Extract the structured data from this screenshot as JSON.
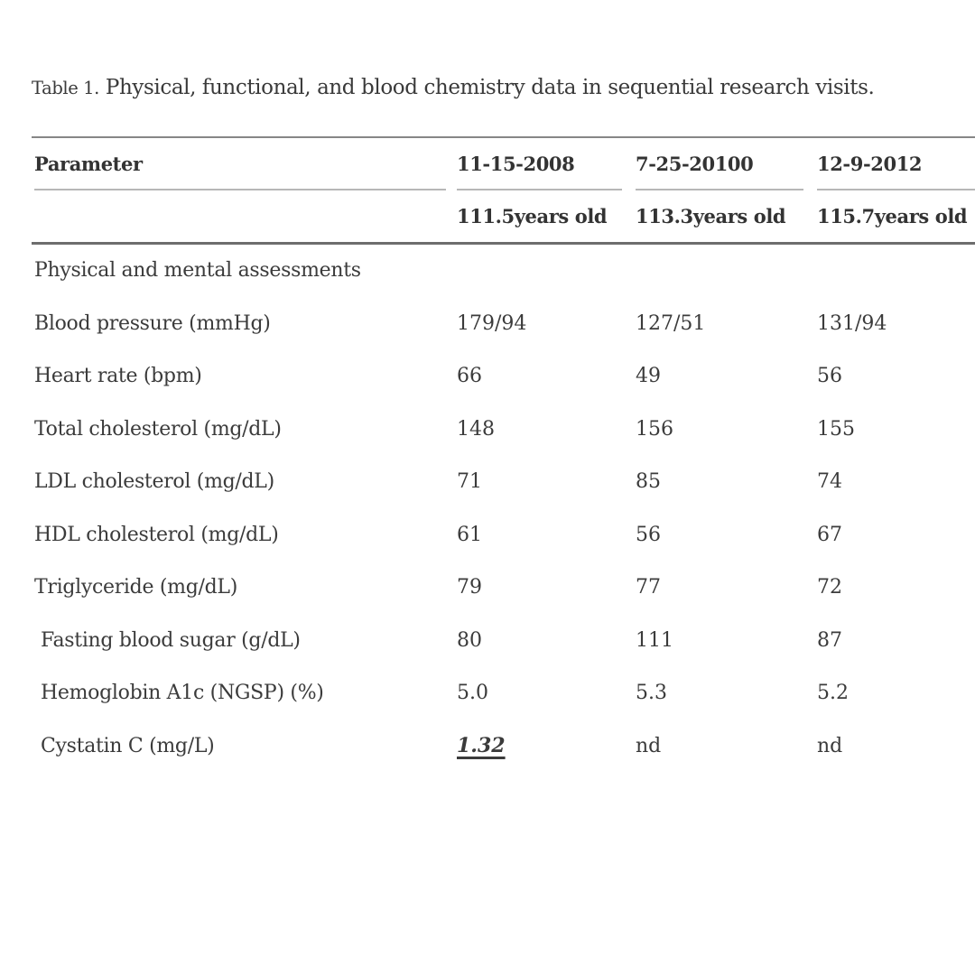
{
  "title": {
    "prefix": "Table 1.",
    "rest": " Physical, functional, and blood chemistry data in sequential research visits."
  },
  "table": {
    "param_header": "Parameter",
    "visits": [
      {
        "date": "11-15-2008",
        "age": "111.5years old"
      },
      {
        "date": "7-25-20100",
        "age": "113.3years old"
      },
      {
        "date": "12-9-2012",
        "age": "115.7years old"
      }
    ],
    "section": "Physical and mental assessments",
    "rows": [
      {
        "param": "Blood pressure (mmHg)",
        "values": [
          "179/94",
          "127/51",
          "131/94"
        ]
      },
      {
        "param": "Heart rate (bpm)",
        "values": [
          "66",
          "49",
          "56"
        ]
      },
      {
        "param": "Total cholesterol (mg/dL)",
        "values": [
          "148",
          "156",
          "155"
        ]
      },
      {
        "param": "LDL cholesterol (mg/dL)",
        "values": [
          "71",
          "85",
          "74"
        ]
      },
      {
        "param": "HDL cholesterol (mg/dL)",
        "values": [
          "61",
          "56",
          "67"
        ]
      },
      {
        "param": "Triglyceride (mg/dL)",
        "values": [
          "79",
          "77",
          "72"
        ]
      },
      {
        "param": "Fasting blood sugar (g/dL)",
        "values": [
          "80",
          "111",
          "87"
        ]
      },
      {
        "param": "Hemoglobin A1c (NGSP) (%)",
        "values": [
          "5.0",
          "5.3",
          "5.2"
        ]
      },
      {
        "param": "Cystatin C (mg/L)",
        "values": [
          "1.32",
          "nd",
          "nd"
        ]
      }
    ]
  },
  "colors": {
    "background": "#ffffff",
    "text": "#3b3b3b",
    "rule_heavy": "#6d6d6d",
    "rule_light": "#b7b7b7"
  }
}
